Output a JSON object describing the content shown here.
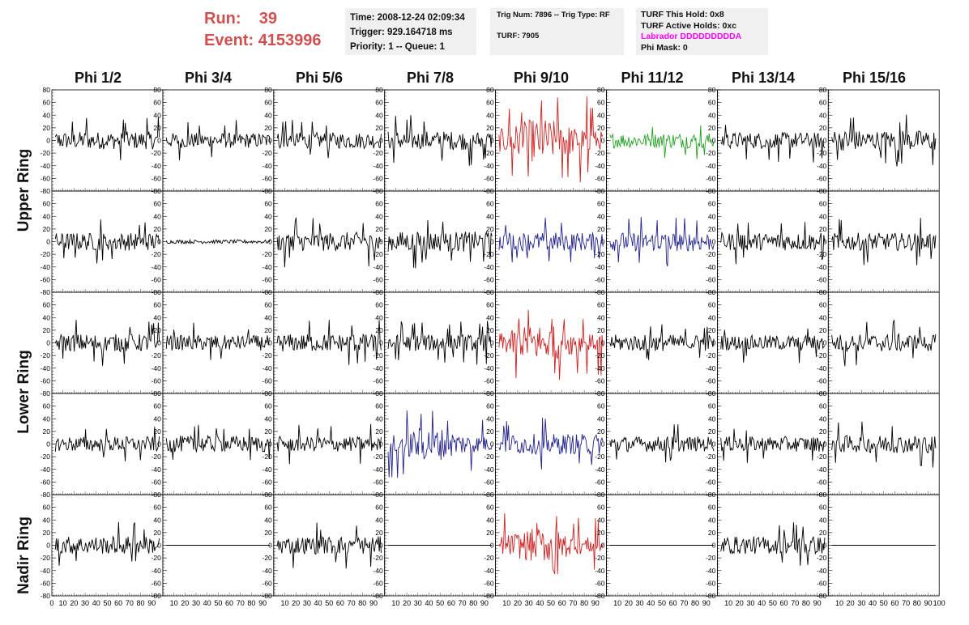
{
  "run": {
    "run_label": "Run:",
    "run_value": "39",
    "event_label": "Event:",
    "event_value": "4153996"
  },
  "info1": {
    "time": "Time: 2008-12-24 02:09:34",
    "trigger": "Trigger: 929.164718 ms",
    "priority": "Priority: 1 -- Queue: 1"
  },
  "info2": {
    "trig": "Trig Num: 7896 -- Trig Type: RF",
    "turf": "TURF: 7905"
  },
  "info3": {
    "hold": "TURF This Hold: 0x8",
    "active": "TURF Active Holds: 0xc",
    "labrador": "Labrador DDDDDDDDDA",
    "phimask": "Phi Mask: 0"
  },
  "colors": {
    "run_text": "#d05050",
    "labrador": "#ff00ff",
    "black": "#000000",
    "red": "#cc2222",
    "green": "#22a022",
    "blue": "#22228c"
  },
  "columns": [
    "Phi 1/2",
    "Phi 3/4",
    "Phi 5/6",
    "Phi 7/8",
    "Phi 9/10",
    "Phi 11/12",
    "Phi 13/14",
    "Phi 15/16"
  ],
  "row_labels": {
    "upper": "Upper Ring",
    "lower": "Lower Ring",
    "nadir": "Nadir Ring"
  },
  "chart_data": {
    "type": "line",
    "xlim": [
      0,
      100
    ],
    "ylim": [
      -80,
      80
    ],
    "y_ticks": [
      "80",
      "60",
      "40",
      "20",
      "0",
      "-20",
      "-40",
      "-60",
      "-80"
    ],
    "x_ticks": [
      "0",
      "10",
      "20",
      "30",
      "40",
      "50",
      "60",
      "70",
      "80",
      "90",
      "100"
    ],
    "grid": false,
    "rows": [
      {
        "ring": "upper",
        "panels": [
          {
            "color": "black",
            "amp": 14,
            "spikes": 8
          },
          {
            "color": "black",
            "amp": 12,
            "spikes": 6
          },
          {
            "color": "black",
            "amp": 13,
            "spikes": 8
          },
          {
            "color": "black",
            "amp": 15,
            "spikes": 10
          },
          {
            "color": "red",
            "amp": 26,
            "spikes": 14,
            "burst": true
          },
          {
            "color": "green",
            "amp": 12,
            "spikes": 6
          },
          {
            "color": "black",
            "amp": 13,
            "spikes": 7
          },
          {
            "color": "black",
            "amp": 16,
            "spikes": 12
          }
        ]
      },
      {
        "ring": "upper",
        "panels": [
          {
            "color": "black",
            "amp": 14,
            "spikes": 8
          },
          {
            "color": "black",
            "amp": 3,
            "spikes": 0
          },
          {
            "color": "black",
            "amp": 15,
            "spikes": 9
          },
          {
            "color": "black",
            "amp": 16,
            "spikes": 10
          },
          {
            "color": "blue",
            "amp": 15,
            "spikes": 10
          },
          {
            "color": "blue",
            "amp": 15,
            "spikes": 10
          },
          {
            "color": "black",
            "amp": 14,
            "spikes": 8
          },
          {
            "color": "black",
            "amp": 14,
            "spikes": 8
          }
        ]
      },
      {
        "ring": "lower",
        "panels": [
          {
            "color": "black",
            "amp": 14,
            "spikes": 10
          },
          {
            "color": "black",
            "amp": 12,
            "spikes": 6
          },
          {
            "color": "black",
            "amp": 14,
            "spikes": 8
          },
          {
            "color": "black",
            "amp": 13,
            "spikes": 20
          },
          {
            "color": "red",
            "amp": 22,
            "spikes": 12,
            "burst": true
          },
          {
            "color": "black",
            "amp": 13,
            "spikes": 8
          },
          {
            "color": "black",
            "amp": 12,
            "spikes": 6
          },
          {
            "color": "black",
            "amp": 14,
            "spikes": 8
          }
        ]
      },
      {
        "ring": "lower",
        "panels": [
          {
            "color": "black",
            "amp": 12,
            "spikes": 6
          },
          {
            "color": "black",
            "amp": 13,
            "spikes": 8
          },
          {
            "color": "black",
            "amp": 12,
            "spikes": 6
          },
          {
            "color": "blue",
            "amp": 20,
            "spikes": 10,
            "burst": true
          },
          {
            "color": "blue",
            "amp": 16,
            "spikes": 8
          },
          {
            "color": "black",
            "amp": 12,
            "spikes": 6
          },
          {
            "color": "black",
            "amp": 12,
            "spikes": 6
          },
          {
            "color": "black",
            "amp": 14,
            "spikes": 8
          }
        ]
      },
      {
        "ring": "nadir",
        "panels": [
          {
            "color": "black",
            "amp": 14,
            "spikes": 8
          },
          {
            "color": "black",
            "amp": 0,
            "spikes": 0
          },
          {
            "color": "black",
            "amp": 14,
            "spikes": 8
          },
          {
            "color": "black",
            "amp": 0,
            "spikes": 0
          },
          {
            "color": "red",
            "amp": 20,
            "spikes": 12,
            "burst": true
          },
          {
            "color": "black",
            "amp": 0,
            "spikes": 0
          },
          {
            "color": "black",
            "amp": 14,
            "spikes": 8
          },
          {
            "color": "black",
            "amp": 0,
            "spikes": 0
          }
        ]
      }
    ]
  }
}
